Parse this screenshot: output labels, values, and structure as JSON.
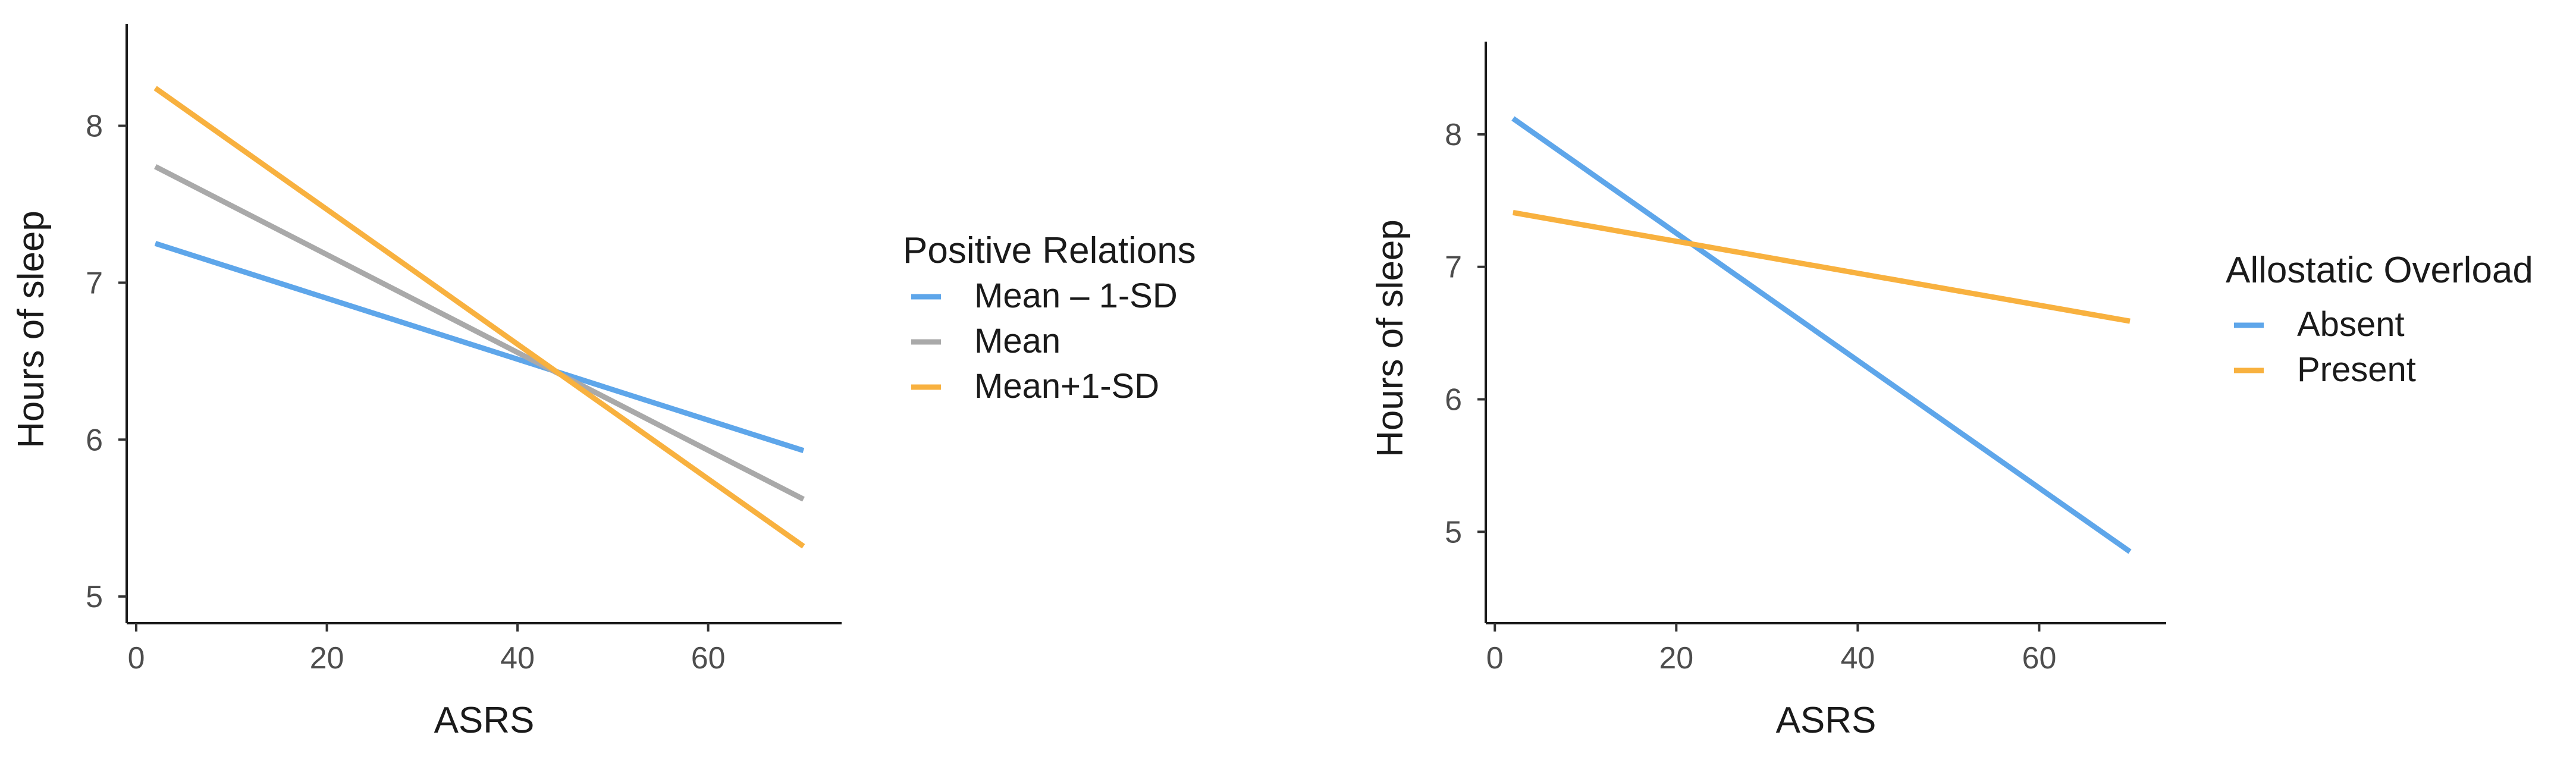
{
  "chart_data": [
    {
      "type": "line",
      "title": "",
      "xlabel": "ASRS",
      "ylabel": "Hours of sleep",
      "xlim": [
        -1,
        74
      ],
      "ylim": [
        4.83,
        8.65
      ],
      "xticks": [
        0,
        20,
        40,
        60
      ],
      "yticks": [
        5,
        6,
        7,
        8
      ],
      "grid": false,
      "legend": {
        "title": "Positive Relations",
        "position": "right"
      },
      "series": [
        {
          "name": "Mean – 1-SD",
          "color": "#5ea6ea",
          "x": [
            2,
            70
          ],
          "y": [
            7.25,
            5.93
          ]
        },
        {
          "name": "Mean",
          "color": "#a9a9a9",
          "x": [
            2,
            70
          ],
          "y": [
            7.74,
            5.62
          ]
        },
        {
          "name": "Mean+1-SD",
          "color": "#f8b13f",
          "x": [
            2,
            70
          ],
          "y": [
            8.24,
            5.32
          ]
        }
      ]
    },
    {
      "type": "line",
      "title": "",
      "xlabel": "ASRS",
      "ylabel": "Hours of sleep",
      "xlim": [
        -1,
        74
      ],
      "ylim": [
        4.31,
        8.7
      ],
      "xticks": [
        0,
        20,
        40,
        60
      ],
      "yticks": [
        5,
        6,
        7,
        8
      ],
      "grid": false,
      "legend": {
        "title": "Allostatic Overload",
        "position": "right"
      },
      "series": [
        {
          "name": "Absent",
          "color": "#5ea6ea",
          "x": [
            2,
            70
          ],
          "y": [
            8.12,
            4.85
          ]
        },
        {
          "name": "Present",
          "color": "#f8b13f",
          "x": [
            2,
            70
          ],
          "y": [
            7.41,
            6.59
          ]
        }
      ]
    }
  ]
}
